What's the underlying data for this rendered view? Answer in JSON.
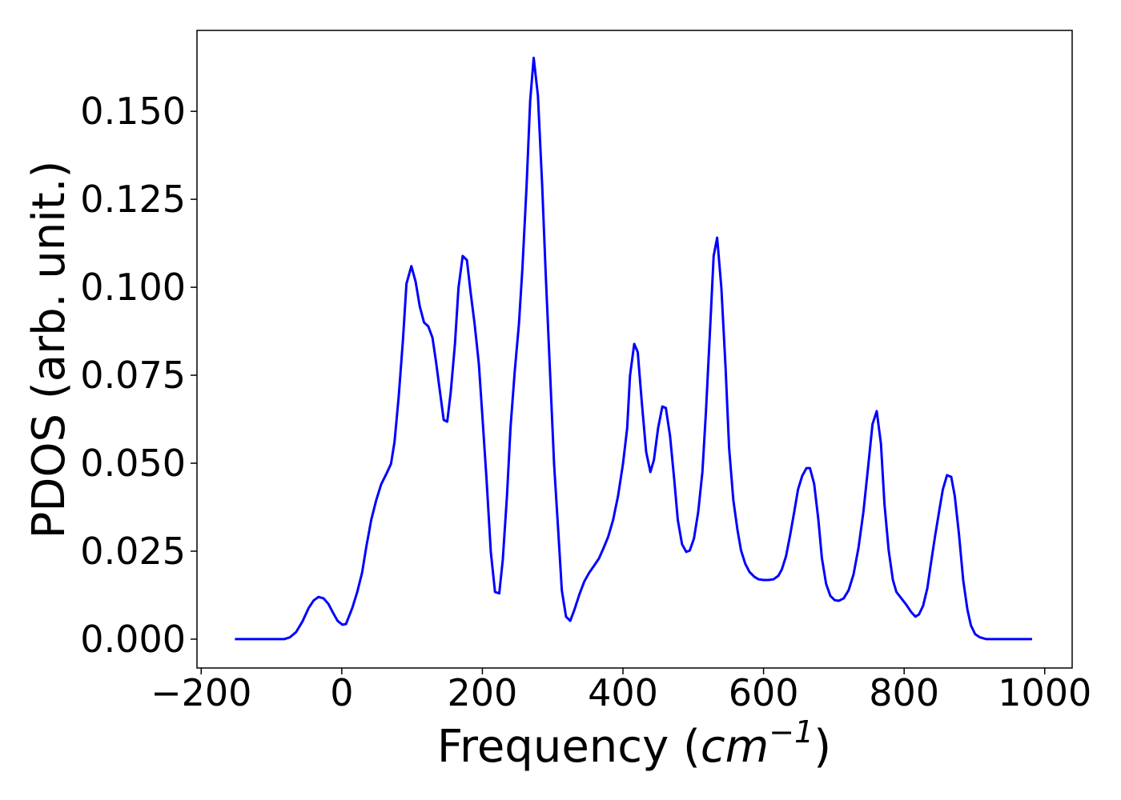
{
  "chart_data": {
    "type": "line",
    "xlabel": [
      "Frequency (",
      "cm",
      "−1",
      ")"
    ],
    "ylabel": "PDOS (arb. unit.)",
    "xlim": [
      -206,
      1039
    ],
    "ylim": [
      -0.0082,
      0.173
    ],
    "xticks": [
      {
        "value": -200,
        "label": "−200"
      },
      0,
      200,
      400,
      600,
      800,
      1000
    ],
    "yticks": [
      {
        "value": 0,
        "label": "0.000"
      },
      {
        "value": 0.025,
        "label": "0.025"
      },
      {
        "value": 0.05,
        "label": "0.050"
      },
      {
        "value": 0.075,
        "label": "0.075"
      },
      {
        "value": 0.1,
        "label": "0.100"
      },
      {
        "value": 0.125,
        "label": "0.125"
      },
      {
        "value": 0.15,
        "label": "0.150"
      }
    ],
    "series": [
      {
        "color": "#0000ff",
        "x": [
          -152,
          -82,
          -74,
          -65,
          -56,
          -47,
          -40,
          -33,
          -26,
          -19,
          -13,
          -6,
          1,
          6,
          15,
          22,
          29,
          35,
          42,
          49,
          56,
          63,
          70,
          75,
          81,
          87,
          92,
          99,
          105,
          111,
          117,
          123,
          129,
          134,
          140,
          145,
          150,
          155,
          161,
          166,
          172,
          178,
          183,
          189,
          195,
          200,
          206,
          212,
          218,
          224,
          229,
          235,
          240,
          246,
          252,
          257,
          263,
          268,
          273,
          279,
          285,
          290,
          296,
          302,
          308,
          313,
          319,
          325,
          331,
          338,
          345,
          352,
          359,
          366,
          372,
          379,
          386,
          393,
          400,
          406,
          410,
          416,
          421,
          427,
          433,
          439,
          444,
          450,
          456,
          461,
          467,
          473,
          478,
          484,
          490,
          495,
          501,
          507,
          513,
          518,
          524,
          529,
          534,
          540,
          546,
          551,
          557,
          563,
          568,
          574,
          580,
          587,
          593,
          600,
          607,
          614,
          621,
          626,
          632,
          638,
          644,
          649,
          655,
          661,
          666,
          672,
          678,
          683,
          689,
          695,
          701,
          707,
          714,
          721,
          728,
          735,
          742,
          748,
          755,
          761,
          767,
          772,
          778,
          784,
          789,
          796,
          803,
          810,
          816,
          821,
          827,
          833,
          838,
          844,
          850,
          855,
          861,
          867,
          872,
          878,
          884,
          890,
          895,
          901,
          908,
          917,
          982
        ],
        "values": [
          0,
          0,
          0.0005,
          0.002,
          0.005,
          0.0089,
          0.011,
          0.012,
          0.0116,
          0.01,
          0.0077,
          0.0052,
          0.0041,
          0.0043,
          0.0089,
          0.0134,
          0.019,
          0.0264,
          0.034,
          0.0395,
          0.044,
          0.0468,
          0.0498,
          0.056,
          0.069,
          0.085,
          0.101,
          0.106,
          0.1016,
          0.0945,
          0.09,
          0.0889,
          0.0857,
          0.0789,
          0.0698,
          0.0623,
          0.0618,
          0.0702,
          0.0839,
          0.0998,
          0.1089,
          0.1077,
          0.099,
          0.0895,
          0.0782,
          0.0634,
          0.0452,
          0.0248,
          0.0134,
          0.013,
          0.0225,
          0.0407,
          0.06,
          0.076,
          0.0895,
          0.1055,
          0.1293,
          0.153,
          0.1652,
          0.1545,
          0.1293,
          0.1043,
          0.077,
          0.0498,
          0.0305,
          0.0139,
          0.0064,
          0.0052,
          0.0084,
          0.0127,
          0.0164,
          0.0189,
          0.0209,
          0.023,
          0.0257,
          0.0291,
          0.0339,
          0.0407,
          0.0498,
          0.06,
          0.0748,
          0.0839,
          0.0816,
          0.0668,
          0.0532,
          0.0475,
          0.0509,
          0.06,
          0.0661,
          0.0657,
          0.0577,
          0.0452,
          0.0339,
          0.027,
          0.0248,
          0.0252,
          0.0286,
          0.0361,
          0.0475,
          0.0645,
          0.0884,
          0.1089,
          0.1141,
          0.0998,
          0.077,
          0.0543,
          0.0395,
          0.0309,
          0.0252,
          0.0214,
          0.0191,
          0.0177,
          0.017,
          0.0168,
          0.0168,
          0.017,
          0.018,
          0.0198,
          0.0236,
          0.0298,
          0.0366,
          0.0425,
          0.0464,
          0.0486,
          0.0486,
          0.0441,
          0.0339,
          0.023,
          0.0157,
          0.0123,
          0.0111,
          0.0109,
          0.0116,
          0.0139,
          0.0184,
          0.0259,
          0.0361,
          0.0475,
          0.0611,
          0.0648,
          0.0555,
          0.0384,
          0.0252,
          0.0168,
          0.0134,
          0.0116,
          0.0098,
          0.0077,
          0.0064,
          0.007,
          0.0095,
          0.0145,
          0.0214,
          0.0293,
          0.0366,
          0.0425,
          0.0466,
          0.0461,
          0.0407,
          0.0298,
          0.0168,
          0.0084,
          0.0039,
          0.0014,
          0.0005,
          0,
          0
        ]
      }
    ]
  }
}
